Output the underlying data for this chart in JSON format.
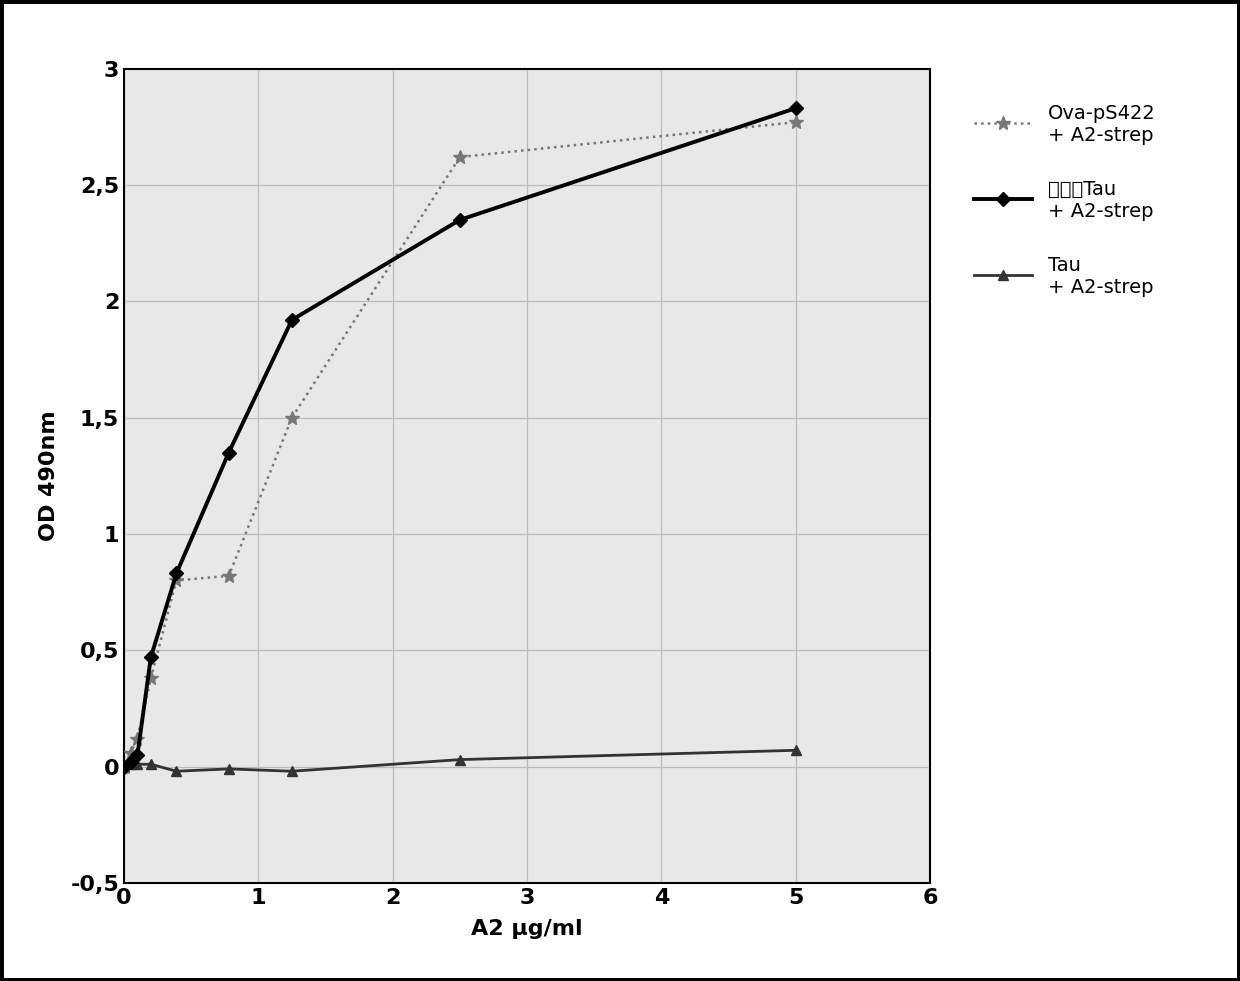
{
  "series1_label": "磷酸化Tau\n+ A2-strep",
  "series2_label": "Ova-pS422\n+ A2-strep",
  "series3_label": "Tau\n+ A2-strep",
  "series1_x": [
    0.0,
    0.05,
    0.1,
    0.2,
    0.39,
    0.78,
    1.25,
    2.5,
    5.0
  ],
  "series1_y": [
    0.0,
    0.02,
    0.05,
    0.47,
    0.83,
    1.35,
    1.92,
    2.35,
    2.83
  ],
  "series2_x": [
    0.0,
    0.05,
    0.1,
    0.2,
    0.39,
    0.78,
    1.25,
    2.5,
    5.0
  ],
  "series2_y": [
    0.0,
    0.06,
    0.12,
    0.38,
    0.8,
    0.82,
    1.5,
    2.62,
    2.77
  ],
  "series3_x": [
    0.0,
    0.05,
    0.1,
    0.2,
    0.39,
    0.78,
    1.25,
    2.5,
    5.0
  ],
  "series3_y": [
    0.0,
    0.01,
    0.01,
    0.01,
    -0.02,
    -0.01,
    -0.02,
    0.03,
    0.07
  ],
  "xlabel": "A2 μg/ml",
  "ylabel": "OD 490nm",
  "xlim": [
    0,
    6
  ],
  "ylim": [
    -0.5,
    3.0
  ],
  "xticks": [
    0,
    1,
    2,
    3,
    4,
    5,
    6
  ],
  "yticks": [
    -0.5,
    0,
    0.5,
    1,
    1.5,
    2,
    2.5,
    3
  ],
  "ytick_labels": [
    "-0,5",
    "0",
    "0,5",
    "1",
    "1,5",
    "2",
    "2,5",
    "3"
  ],
  "line1_color": "#000000",
  "line2_color": "#777777",
  "line3_color": "#333333",
  "plot_bg_color": "#e8e8e8",
  "fig_bg_color": "#ffffff",
  "grid_color": "#bbbbbb",
  "border_color": "#000000",
  "figsize": [
    12.4,
    9.81
  ],
  "dpi": 100
}
